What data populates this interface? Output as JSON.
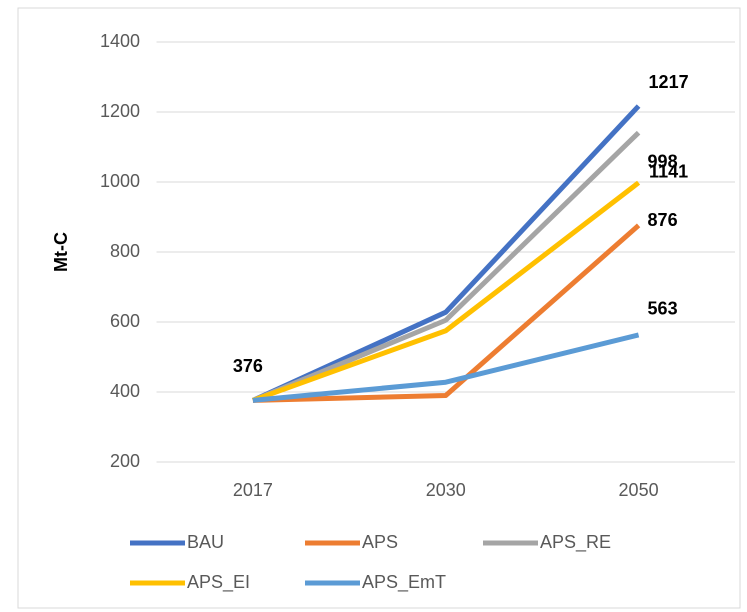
{
  "chart_data": {
    "type": "line",
    "ylabel": "Mt-C",
    "categories": [
      "2017",
      "2030",
      "2050"
    ],
    "series": [
      {
        "name": "BAU",
        "color": "#4472c4",
        "values": [
          376,
          628,
          1217
        ]
      },
      {
        "name": "APS",
        "color": "#ed7d31",
        "values": [
          376,
          390,
          876
        ]
      },
      {
        "name": "APS_RE",
        "color": "#a5a5a5",
        "values": [
          376,
          605,
          1141
        ]
      },
      {
        "name": "APS_EI",
        "color": "#ffc000",
        "values": [
          376,
          575,
          998
        ]
      },
      {
        "name": "APS_EmT",
        "color": "#5b9bd5",
        "values": [
          376,
          428,
          563
        ]
      }
    ],
    "ylim": [
      200,
      1400
    ],
    "yticks": [
      200,
      400,
      600,
      800,
      1000,
      1200,
      1400
    ],
    "grid": true
  }
}
